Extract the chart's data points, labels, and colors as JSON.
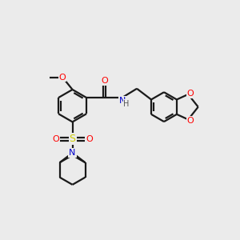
{
  "background_color": "#ebebeb",
  "bond_color": "#1a1a1a",
  "atom_colors": {
    "O": "#ff0000",
    "N": "#0000cc",
    "S": "#cccc00",
    "H": "#555555",
    "C": "#1a1a1a"
  },
  "figsize": [
    3.0,
    3.0
  ],
  "dpi": 100,
  "lw": 1.6,
  "ring_r": 0.55
}
